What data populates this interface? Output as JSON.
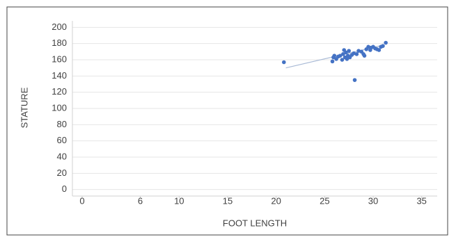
{
  "chart_data": {
    "type": "scatter",
    "x_label": "FOOT LENGTH",
    "y_label": "STATURE",
    "x": [
      20.8,
      25.8,
      25.9,
      26.0,
      26.2,
      26.4,
      26.6,
      26.8,
      26.9,
      27.0,
      27.1,
      27.2,
      27.3,
      27.4,
      27.5,
      27.6,
      27.8,
      28.0,
      28.1,
      28.3,
      28.5,
      28.8,
      29.0,
      29.1,
      29.3,
      29.5,
      29.7,
      29.8,
      30.0,
      30.2,
      30.4,
      30.6,
      30.8,
      31.0,
      31.3
    ],
    "y": [
      157,
      158,
      163,
      165,
      161,
      164,
      165,
      160,
      167,
      172,
      163,
      169,
      161,
      165,
      171,
      163,
      166,
      168,
      135,
      167,
      171,
      170,
      167,
      165,
      173,
      176,
      172,
      175,
      176,
      174,
      173,
      172,
      176,
      177,
      181
    ],
    "color": "#4472c4",
    "trendline": {
      "x": [
        21,
        31
      ],
      "y": [
        150,
        178
      ],
      "color": "#a9bad6"
    },
    "xlim": [
      -1,
      36.6
    ],
    "ylim": [
      -8,
      208
    ],
    "xticks": [
      0,
      6,
      10,
      15,
      20,
      25,
      30,
      35
    ],
    "yticks": [
      0,
      20,
      40,
      60,
      80,
      100,
      120,
      140,
      160,
      180,
      200
    ],
    "grid": true
  }
}
